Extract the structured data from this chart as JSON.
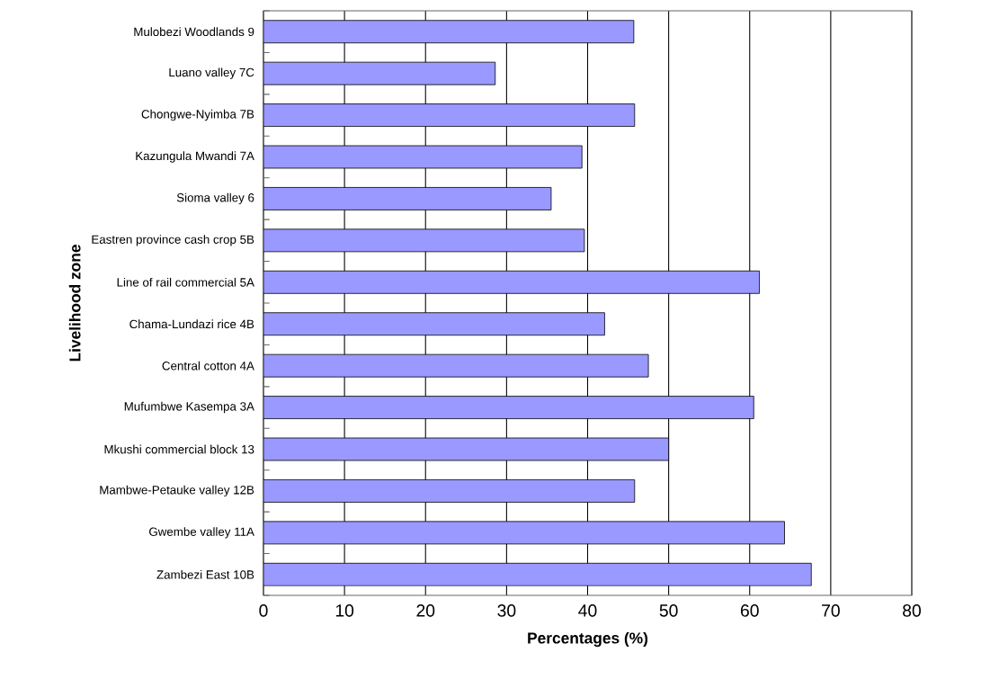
{
  "chart_data": {
    "type": "bar",
    "orientation": "horizontal",
    "xlabel": "Percentages (%)",
    "ylabel": "Livelihood zone",
    "categories": [
      "Mulobezi Woodlands 9",
      "Luano valley 7C",
      "Chongwe-Nyimba 7B",
      "Kazungula Mwandi 7A",
      "Sioma valley 6",
      "Eastren province cash crop 5B",
      "Line of rail commercial 5A",
      "Chama-Lundazi rice 4B",
      "Central cotton 4A",
      "Mufumbwe Kasempa 3A",
      "Mkushi commercial block 13",
      "Mambwe-Petauke valley 12B",
      "Gwembe valley 11A",
      "Zambezi East 10B"
    ],
    "values": [
      45.7,
      28.6,
      45.8,
      39.3,
      35.5,
      39.6,
      61.2,
      42.1,
      47.5,
      60.5,
      50.0,
      45.8,
      64.3,
      67.6
    ],
    "color": "#9999ff",
    "xlim": [
      0,
      80
    ],
    "xticks": [
      0,
      10,
      20,
      30,
      40,
      50,
      60,
      70,
      80
    ],
    "grid": "x"
  }
}
